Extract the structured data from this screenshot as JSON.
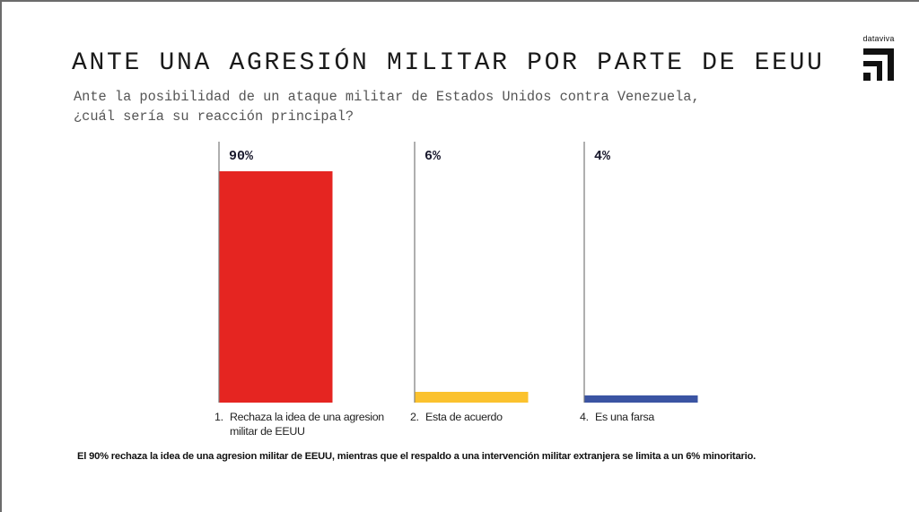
{
  "header": {
    "title": "ANTE UNA AGRESIÓN MILITAR POR PARTE DE EEUU",
    "subtitle_line1": "Ante la posibilidad de un ataque militar de Estados Unidos contra Venezuela,",
    "subtitle_line2": "¿cuál sería su reacción principal?"
  },
  "logo": {
    "text": "dataviva",
    "icon": "dataviva-logo-icon"
  },
  "chart_data": {
    "type": "bar",
    "title": "ANTE UNA AGRESIÓN MILITAR POR PARTE DE EEUU",
    "subtitle": "Ante la posibilidad de un ataque militar de Estados Unidos contra Venezuela, ¿cuál sería su reacción principal?",
    "categories": [
      {
        "num": "1.",
        "label": "Rechaza la idea de una agresion militar de EEUU"
      },
      {
        "num": "2.",
        "label": "Esta de acuerdo"
      },
      {
        "num": "4.",
        "label": "Es una farsa"
      }
    ],
    "values": [
      90,
      6,
      4
    ],
    "value_labels": [
      "90%",
      "6%",
      "4%"
    ],
    "unit": "%",
    "colors": [
      "#e52521",
      "#fbc22e",
      "#3b54a3"
    ],
    "ylim": [
      0,
      100
    ],
    "grid": false,
    "legend": "none"
  },
  "footnote": "El 90% rechaza la idea de una agresion militar de EEUU, mientras que el respaldo a una intervención militar extranjera se limita a un 6% minoritario."
}
